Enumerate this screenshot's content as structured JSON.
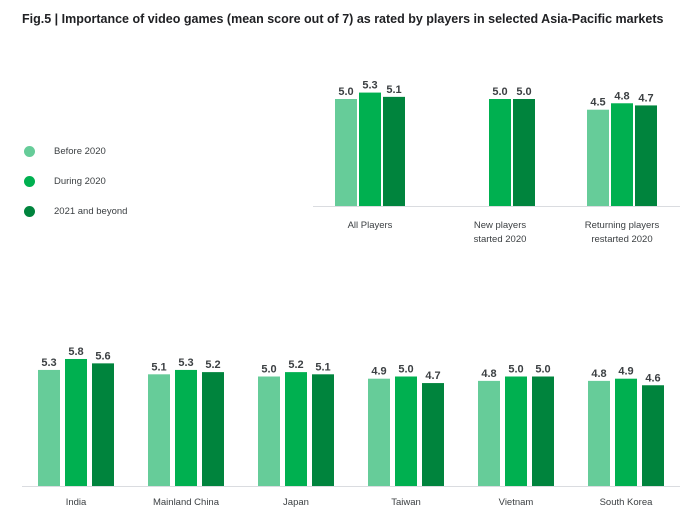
{
  "title": "Fig.5 | Importance of video games (mean score out of 7) as rated by players in selected Asia-Pacific markets",
  "legend": {
    "items": [
      {
        "label": "Before 2020",
        "color": "#66cc99"
      },
      {
        "label": "During 2020",
        "color": "#00b050"
      },
      {
        "label": "2021 and beyond",
        "color": "#00843d"
      }
    ]
  },
  "chart_data": [
    {
      "type": "bar",
      "title": "",
      "categories": [
        [
          "All Players"
        ],
        [
          "New players",
          "started 2020"
        ],
        [
          "Returning players",
          "restarted 2020"
        ]
      ],
      "series": [
        {
          "name": "Before 2020",
          "values": [
            5.0,
            null,
            4.5
          ]
        },
        {
          "name": "During 2020",
          "values": [
            5.3,
            5.0,
            4.8
          ]
        },
        {
          "name": "2021 and beyond",
          "values": [
            5.1,
            5.0,
            4.7
          ]
        }
      ],
      "ylim": [
        0,
        7
      ],
      "grid": false,
      "legend_position": "left"
    },
    {
      "type": "bar",
      "title": "",
      "categories": [
        [
          "India"
        ],
        [
          "Mainland China"
        ],
        [
          "Japan"
        ],
        [
          "Taiwan"
        ],
        [
          "Vietnam"
        ],
        [
          "South Korea"
        ]
      ],
      "series": [
        {
          "name": "Before 2020",
          "values": [
            5.3,
            5.1,
            5.0,
            4.9,
            4.8,
            4.8
          ]
        },
        {
          "name": "During 2020",
          "values": [
            5.8,
            5.3,
            5.2,
            5.0,
            5.0,
            4.9
          ]
        },
        {
          "name": "2021 and beyond",
          "values": [
            5.6,
            5.2,
            5.1,
            4.7,
            5.0,
            4.6
          ]
        }
      ],
      "ylim": [
        0,
        7
      ],
      "grid": false,
      "legend_position": "left"
    }
  ]
}
